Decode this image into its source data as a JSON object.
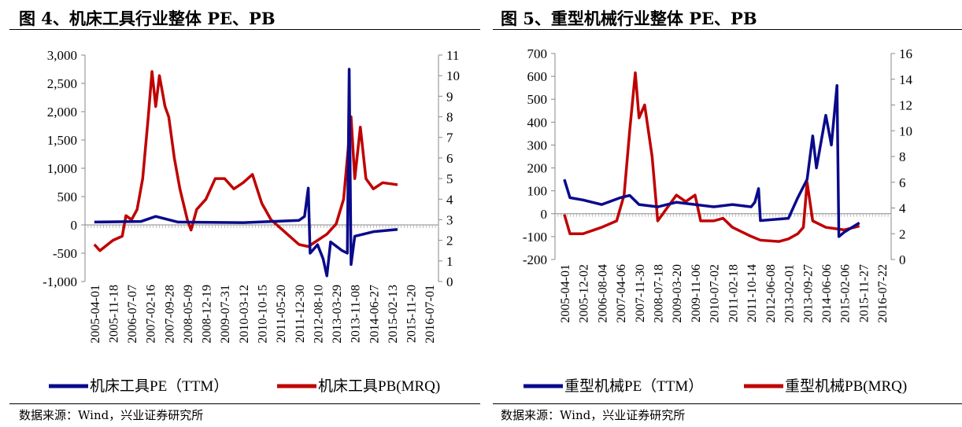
{
  "chart_data": [
    {
      "type": "line",
      "title": "图 4、机床工具行业整体 PE、PB",
      "source": "数据来源：Wind，兴业证券研究所",
      "categories": [
        "2005-04-01",
        "2005-11-18",
        "2006-07-07",
        "2007-02-16",
        "2007-09-28",
        "2008-05-09",
        "2008-12-19",
        "2009-07-31",
        "2010-03-12",
        "2010-10-15",
        "2011-05-20",
        "2011-12-30",
        "2012-08-10",
        "2013-03-29",
        "2013-11-08",
        "2014-06-27",
        "2015-02-13",
        "2015-11-20",
        "2016-07-01"
      ],
      "y_left": {
        "ticks": [
          "3,000",
          "2,500",
          "2,000",
          "1,500",
          "1,000",
          "500",
          "0",
          "-500",
          "-1,000"
        ],
        "range": [
          -1000,
          3000
        ]
      },
      "y_right": {
        "ticks": [
          "11",
          "10",
          "9",
          "8",
          "7",
          "6",
          "5",
          "4",
          "3",
          "2",
          "1",
          "0"
        ],
        "range": [
          0,
          11
        ]
      },
      "series": [
        {
          "name": "机床工具PE（TTM）",
          "axis": "left",
          "color": "#0a0a8c",
          "points": [
            [
              0,
              50
            ],
            [
              2.5,
              60
            ],
            [
              3.3,
              150
            ],
            [
              4.5,
              50
            ],
            [
              8,
              40
            ],
            [
              11,
              80
            ],
            [
              11.3,
              150
            ],
            [
              11.5,
              650
            ],
            [
              11.6,
              -500
            ],
            [
              12,
              -350
            ],
            [
              12.3,
              -600
            ],
            [
              12.5,
              -900
            ],
            [
              12.7,
              -300
            ],
            [
              13.3,
              -450
            ],
            [
              13.6,
              -500
            ],
            [
              13.7,
              2750
            ],
            [
              13.8,
              -700
            ],
            [
              14,
              -200
            ],
            [
              15,
              -120
            ],
            [
              16.3,
              -80
            ]
          ]
        },
        {
          "name": "机床工具PB(MRQ)",
          "axis": "right",
          "color": "#c00000",
          "points": [
            [
              0,
              1.8
            ],
            [
              0.3,
              1.5
            ],
            [
              1,
              2
            ],
            [
              1.5,
              2.2
            ],
            [
              1.7,
              3.2
            ],
            [
              2,
              3
            ],
            [
              2.3,
              3.5
            ],
            [
              2.6,
              5
            ],
            [
              2.9,
              8
            ],
            [
              3.1,
              10.2
            ],
            [
              3.3,
              8.5
            ],
            [
              3.5,
              10
            ],
            [
              3.8,
              8.5
            ],
            [
              4,
              8
            ],
            [
              4.3,
              6
            ],
            [
              4.6,
              4.5
            ],
            [
              5,
              3
            ],
            [
              5.2,
              2.5
            ],
            [
              5.5,
              3.5
            ],
            [
              6,
              4
            ],
            [
              6.5,
              5
            ],
            [
              7,
              5
            ],
            [
              7.5,
              4.5
            ],
            [
              8,
              4.8
            ],
            [
              8.5,
              5.2
            ],
            [
              9,
              3.8
            ],
            [
              9.5,
              3
            ],
            [
              10,
              2.6
            ],
            [
              10.5,
              2.2
            ],
            [
              11,
              1.8
            ],
            [
              11.5,
              1.7
            ],
            [
              12,
              2
            ],
            [
              12.5,
              2.3
            ],
            [
              13,
              2.8
            ],
            [
              13.4,
              4
            ],
            [
              13.6,
              6
            ],
            [
              13.8,
              8
            ],
            [
              14,
              5
            ],
            [
              14.3,
              7.5
            ],
            [
              14.6,
              5
            ],
            [
              15,
              4.5
            ],
            [
              15.5,
              4.8
            ],
            [
              16.3,
              4.7
            ]
          ]
        }
      ]
    },
    {
      "type": "line",
      "title": "图 5、重型机械行业整体 PE、PB",
      "source": "数据来源：Wind，兴业证券研究所",
      "categories": [
        "2005-04-01",
        "2005-12-02",
        "2006-08-04",
        "2007-04-06",
        "2007-11-30",
        "2008-07-18",
        "2009-03-20",
        "2009-11-06",
        "2010-07-02",
        "2011-02-18",
        "2011-10-14",
        "2012-06-08",
        "2013-02-01",
        "2013-09-27",
        "2014-06-06",
        "2015-02-06",
        "2015-11-27",
        "2016-07-22"
      ],
      "y_left": {
        "ticks": [
          "700",
          "600",
          "500",
          "400",
          "300",
          "200",
          "100",
          "0",
          "-100",
          "-200"
        ],
        "range": [
          -200,
          700
        ]
      },
      "y_right": {
        "ticks": [
          "16",
          "14",
          "12",
          "10",
          "8",
          "6",
          "4",
          "2",
          "0"
        ],
        "range": [
          0,
          16
        ]
      },
      "series": [
        {
          "name": "重型机械PE（TTM）",
          "axis": "left",
          "color": "#0a0a8c",
          "points": [
            [
              0,
              150
            ],
            [
              0.3,
              70
            ],
            [
              1,
              60
            ],
            [
              2,
              40
            ],
            [
              3,
              70
            ],
            [
              3.5,
              80
            ],
            [
              4,
              40
            ],
            [
              5,
              30
            ],
            [
              6,
              50
            ],
            [
              7,
              40
            ],
            [
              8,
              30
            ],
            [
              9,
              40
            ],
            [
              10,
              30
            ],
            [
              10.2,
              50
            ],
            [
              10.4,
              110
            ],
            [
              10.5,
              -30
            ],
            [
              12,
              -20
            ],
            [
              12.5,
              70
            ],
            [
              13,
              150
            ],
            [
              13.3,
              340
            ],
            [
              13.5,
              200
            ],
            [
              14,
              430
            ],
            [
              14.3,
              300
            ],
            [
              14.6,
              560
            ],
            [
              14.7,
              -100
            ],
            [
              15,
              -80
            ],
            [
              15.8,
              -40
            ]
          ]
        },
        {
          "name": "重型机械PB(MRQ)",
          "axis": "right",
          "color": "#c00000",
          "points": [
            [
              0,
              3.5
            ],
            [
              0.3,
              2
            ],
            [
              1,
              2
            ],
            [
              2,
              2.5
            ],
            [
              2.8,
              3
            ],
            [
              3.2,
              5
            ],
            [
              3.5,
              10
            ],
            [
              3.8,
              14.5
            ],
            [
              4,
              11
            ],
            [
              4.3,
              12
            ],
            [
              4.7,
              8
            ],
            [
              5,
              3
            ],
            [
              5.5,
              4
            ],
            [
              6,
              5
            ],
            [
              6.5,
              4.5
            ],
            [
              7,
              5
            ],
            [
              7.3,
              3
            ],
            [
              8,
              3
            ],
            [
              8.5,
              3.2
            ],
            [
              9,
              2.5
            ],
            [
              10,
              1.8
            ],
            [
              10.5,
              1.5
            ],
            [
              11.5,
              1.4
            ],
            [
              12,
              1.6
            ],
            [
              12.5,
              2
            ],
            [
              12.8,
              2.5
            ],
            [
              13,
              6
            ],
            [
              13.3,
              3
            ],
            [
              14,
              2.5
            ],
            [
              15,
              2.3
            ],
            [
              15.8,
              2.6
            ]
          ]
        }
      ]
    }
  ]
}
